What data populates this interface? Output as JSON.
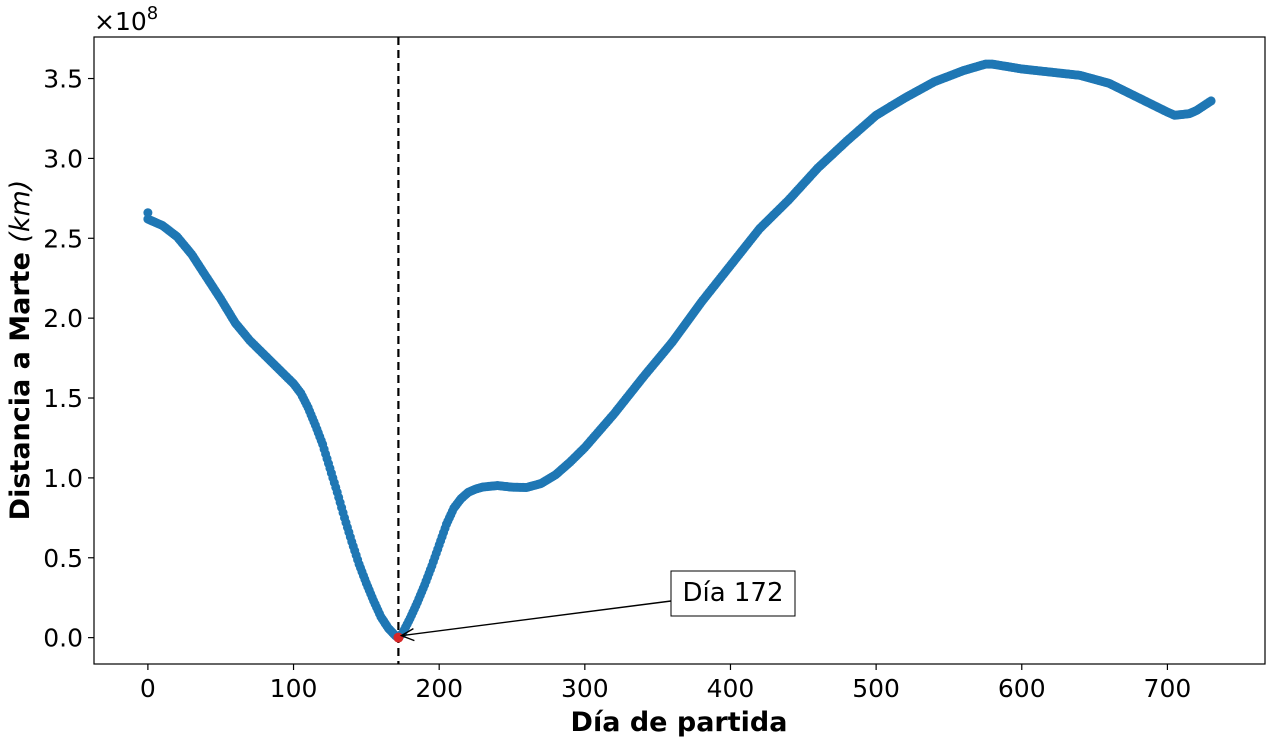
{
  "chart_data": {
    "type": "scatter",
    "title": "",
    "xlabel": "Día de partida",
    "ylabel_main": "Distancia a Marte",
    "ylabel_unit": "(km)",
    "y_offset_base": "×10",
    "y_offset_exp": "8",
    "y_scale": 100000000,
    "xlim": [
      -37,
      767
    ],
    "ylim": [
      -16500000,
      376000000
    ],
    "xticks": [
      0,
      100,
      200,
      300,
      400,
      500,
      600,
      700
    ],
    "yticks": [
      0.0,
      0.5,
      1.0,
      1.5,
      2.0,
      2.5,
      3.0,
      3.5
    ],
    "ytick_labels": [
      "0.0",
      "0.5",
      "1.0",
      "1.5",
      "2.0",
      "2.5",
      "3.0",
      "3.5"
    ],
    "grid": false,
    "legend": "none",
    "series": [
      {
        "color": "#1f77b4",
        "x_start": 0,
        "x_end": 730,
        "x_step": 1,
        "outlier_points": [
          [
            0,
            266000000
          ]
        ],
        "keypoints": [
          [
            0,
            262000000
          ],
          [
            10,
            258000000
          ],
          [
            20,
            251000000
          ],
          [
            30,
            240000000
          ],
          [
            40,
            226000000
          ],
          [
            50,
            212000000
          ],
          [
            60,
            197000000
          ],
          [
            70,
            186000000
          ],
          [
            80,
            177000000
          ],
          [
            90,
            168000000
          ],
          [
            100,
            159000000
          ],
          [
            105,
            153000000
          ],
          [
            110,
            144000000
          ],
          [
            115,
            133000000
          ],
          [
            120,
            121000000
          ],
          [
            125,
            106000000
          ],
          [
            130,
            91000000
          ],
          [
            135,
            75000000
          ],
          [
            140,
            60000000
          ],
          [
            145,
            46000000
          ],
          [
            150,
            34000000
          ],
          [
            155,
            23000000
          ],
          [
            160,
            13000000
          ],
          [
            165,
            6000000
          ],
          [
            170,
            1200000
          ],
          [
            172,
            0
          ],
          [
            175,
            3000000
          ],
          [
            180,
            12000000
          ],
          [
            185,
            22000000
          ],
          [
            190,
            33000000
          ],
          [
            195,
            45000000
          ],
          [
            200,
            58000000
          ],
          [
            205,
            71000000
          ],
          [
            210,
            81000000
          ],
          [
            215,
            87000000
          ],
          [
            220,
            91000000
          ],
          [
            225,
            93000000
          ],
          [
            230,
            94300000
          ],
          [
            240,
            95200000
          ],
          [
            250,
            94200000
          ],
          [
            260,
            94000000
          ],
          [
            270,
            96500000
          ],
          [
            280,
            102000000
          ],
          [
            290,
            110000000
          ],
          [
            300,
            119000000
          ],
          [
            320,
            140000000
          ],
          [
            340,
            163000000
          ],
          [
            360,
            185000000
          ],
          [
            380,
            210000000
          ],
          [
            400,
            233000000
          ],
          [
            420,
            256000000
          ],
          [
            440,
            274000000
          ],
          [
            460,
            294000000
          ],
          [
            480,
            311000000
          ],
          [
            500,
            327000000
          ],
          [
            520,
            338000000
          ],
          [
            540,
            348000000
          ],
          [
            560,
            355000000
          ],
          [
            575,
            359000000
          ],
          [
            580,
            359000000
          ],
          [
            600,
            356000000
          ],
          [
            620,
            354000000
          ],
          [
            640,
            352000000
          ],
          [
            660,
            347000000
          ],
          [
            680,
            338000000
          ],
          [
            700,
            329000000
          ],
          [
            705,
            327000000
          ],
          [
            715,
            328000000
          ],
          [
            720,
            330000000
          ],
          [
            730,
            336000000
          ]
        ]
      }
    ],
    "highlight_point": {
      "x": 172,
      "y": 0,
      "color": "#d62728"
    },
    "vline": {
      "x": 172,
      "style": "dashed",
      "color": "#000000"
    },
    "annotation": {
      "text": "Día 172",
      "x": 172,
      "y": 0
    }
  }
}
